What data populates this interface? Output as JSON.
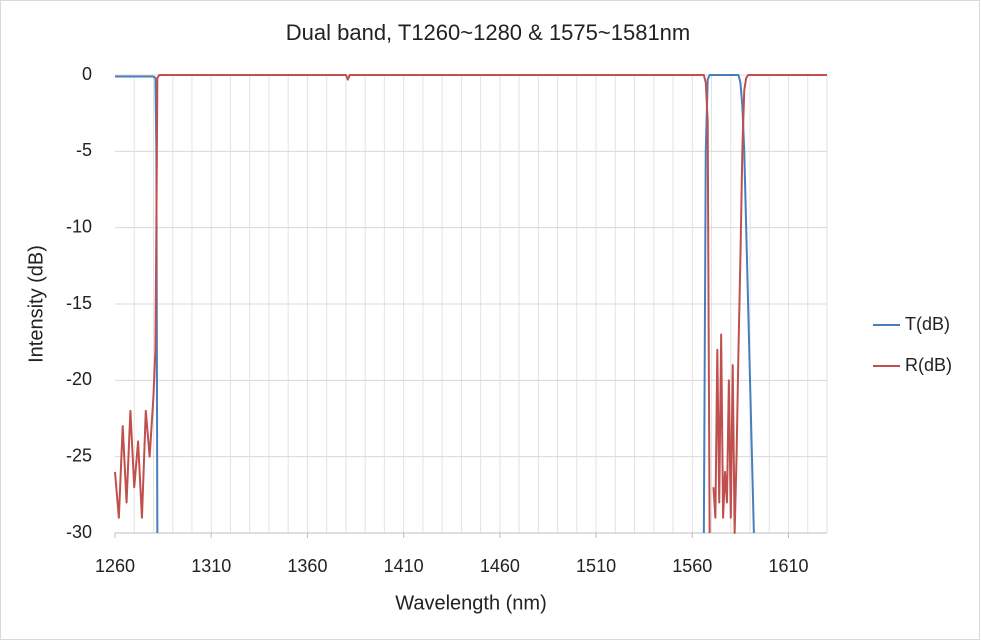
{
  "chart_data": {
    "type": "line",
    "title": "Dual band, T1260~1280 & 1575~1581nm",
    "x_label": "Wavelength (nm)",
    "y_label": "Intensity (dB)",
    "xlim": [
      1260,
      1630
    ],
    "xticks": [
      1260,
      1310,
      1360,
      1410,
      1460,
      1510,
      1560,
      1610
    ],
    "xgrid": [
      1270,
      1280,
      1290,
      1300,
      1310,
      1320,
      1330,
      1340,
      1350,
      1360,
      1370,
      1380,
      1390,
      1400,
      1410,
      1420,
      1430,
      1440,
      1450,
      1460,
      1470,
      1480,
      1490,
      1500,
      1510,
      1520,
      1530,
      1540,
      1550,
      1560,
      1570,
      1580,
      1590,
      1600,
      1610,
      1620,
      1630
    ],
    "ylim": [
      -30,
      0
    ],
    "yticks": [
      0,
      -5,
      -10,
      -15,
      -20,
      -25,
      -30
    ],
    "grid": true,
    "legend": "right",
    "x": [
      1260,
      1262,
      1264,
      1266,
      1268,
      1270,
      1272,
      1274,
      1276,
      1278,
      1280,
      1281,
      1281.5,
      1282,
      1283,
      1380,
      1381,
      1382,
      1500,
      1566,
      1567,
      1568,
      1569,
      1570,
      1571,
      1572,
      1573,
      1574,
      1575,
      1576,
      1577,
      1578,
      1579,
      1580,
      1581,
      1582,
      1583,
      1584,
      1585,
      1586,
      1587,
      1588,
      1589,
      1590,
      1591,
      1592,
      1600,
      1630
    ],
    "series": [
      {
        "name": "T(dB)",
        "color": "#4a7ebb",
        "values": [
          -0.1,
          -0.1,
          -0.1,
          -0.1,
          -0.1,
          -0.1,
          -0.1,
          -0.1,
          -0.1,
          -0.1,
          -0.1,
          -0.2,
          -5,
          -30,
          null,
          null,
          null,
          null,
          null,
          -30,
          -5,
          -0.3,
          0,
          0,
          0,
          0,
          0,
          0,
          0,
          0,
          0,
          0,
          0,
          0,
          0,
          0,
          0,
          0,
          -0.5,
          -2,
          -5,
          -10,
          -15,
          -20,
          -25,
          -30,
          null,
          null
        ]
      },
      {
        "name": "R(dB)",
        "color": "#c0504d",
        "values": [
          -26,
          -29,
          -23,
          -28,
          -22,
          -27,
          -24,
          -29,
          -22,
          -25,
          -21,
          -18,
          -10,
          -0.2,
          0,
          0,
          -0.3,
          0,
          0,
          0,
          -0.5,
          -3,
          -30,
          null,
          -27,
          -29,
          -18,
          -28,
          -17,
          -29,
          -26,
          -28,
          -20,
          -29,
          -19,
          -30,
          -25,
          -18,
          -12,
          -5,
          -1,
          -0.2,
          0,
          0,
          0,
          0,
          0,
          0
        ]
      }
    ]
  }
}
